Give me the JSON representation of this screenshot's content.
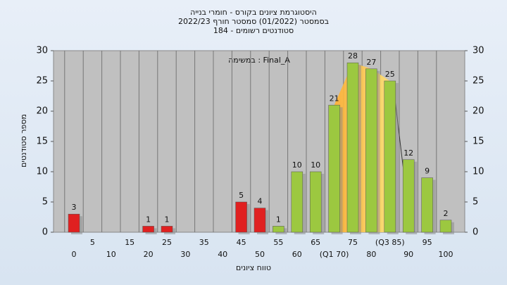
{
  "chart_data": {
    "type": "bar",
    "title": "היסטוגרמת ציונים בקורס - חומרי בנייה",
    "subtitle": "בסמסטר  (01/2022)  סמסטר חורף 2022/23",
    "subtitle2": "סטודנטים רשומים - 184",
    "annotation": "במשימה : Final_A",
    "x_label": "טווח ציונים",
    "y_label": "מספר סטודנטים",
    "categories": [
      "0",
      "5",
      "10",
      "15",
      "20",
      "25",
      "30",
      "35",
      "40",
      "45",
      "50",
      "55",
      "60",
      "65",
      "(Q1 70)",
      "75",
      "80",
      "(Q3 85)",
      "90",
      "95",
      "100"
    ],
    "values": [
      3,
      0,
      0,
      0,
      1,
      1,
      0,
      0,
      0,
      5,
      4,
      1,
      10,
      10,
      21,
      28,
      27,
      25,
      12,
      9,
      2
    ],
    "colors": [
      "#e02020",
      "#e02020",
      "#e02020",
      "#e02020",
      "#e02020",
      "#e02020",
      "#e02020",
      "#e02020",
      "#e02020",
      "#e02020",
      "#e02020",
      "#9cc840",
      "#9cc840",
      "#9cc840",
      "#9cc840",
      "#9cc840",
      "#9cc840",
      "#9cc840",
      "#9cc840",
      "#9cc840",
      "#9cc840"
    ],
    "ylim": [
      0,
      30
    ],
    "yticks": [
      0,
      5,
      10,
      15,
      20,
      25,
      30
    ],
    "y2lim": [
      0,
      30
    ],
    "y2ticks": [
      0,
      5,
      10,
      15,
      20,
      25,
      30
    ]
  }
}
